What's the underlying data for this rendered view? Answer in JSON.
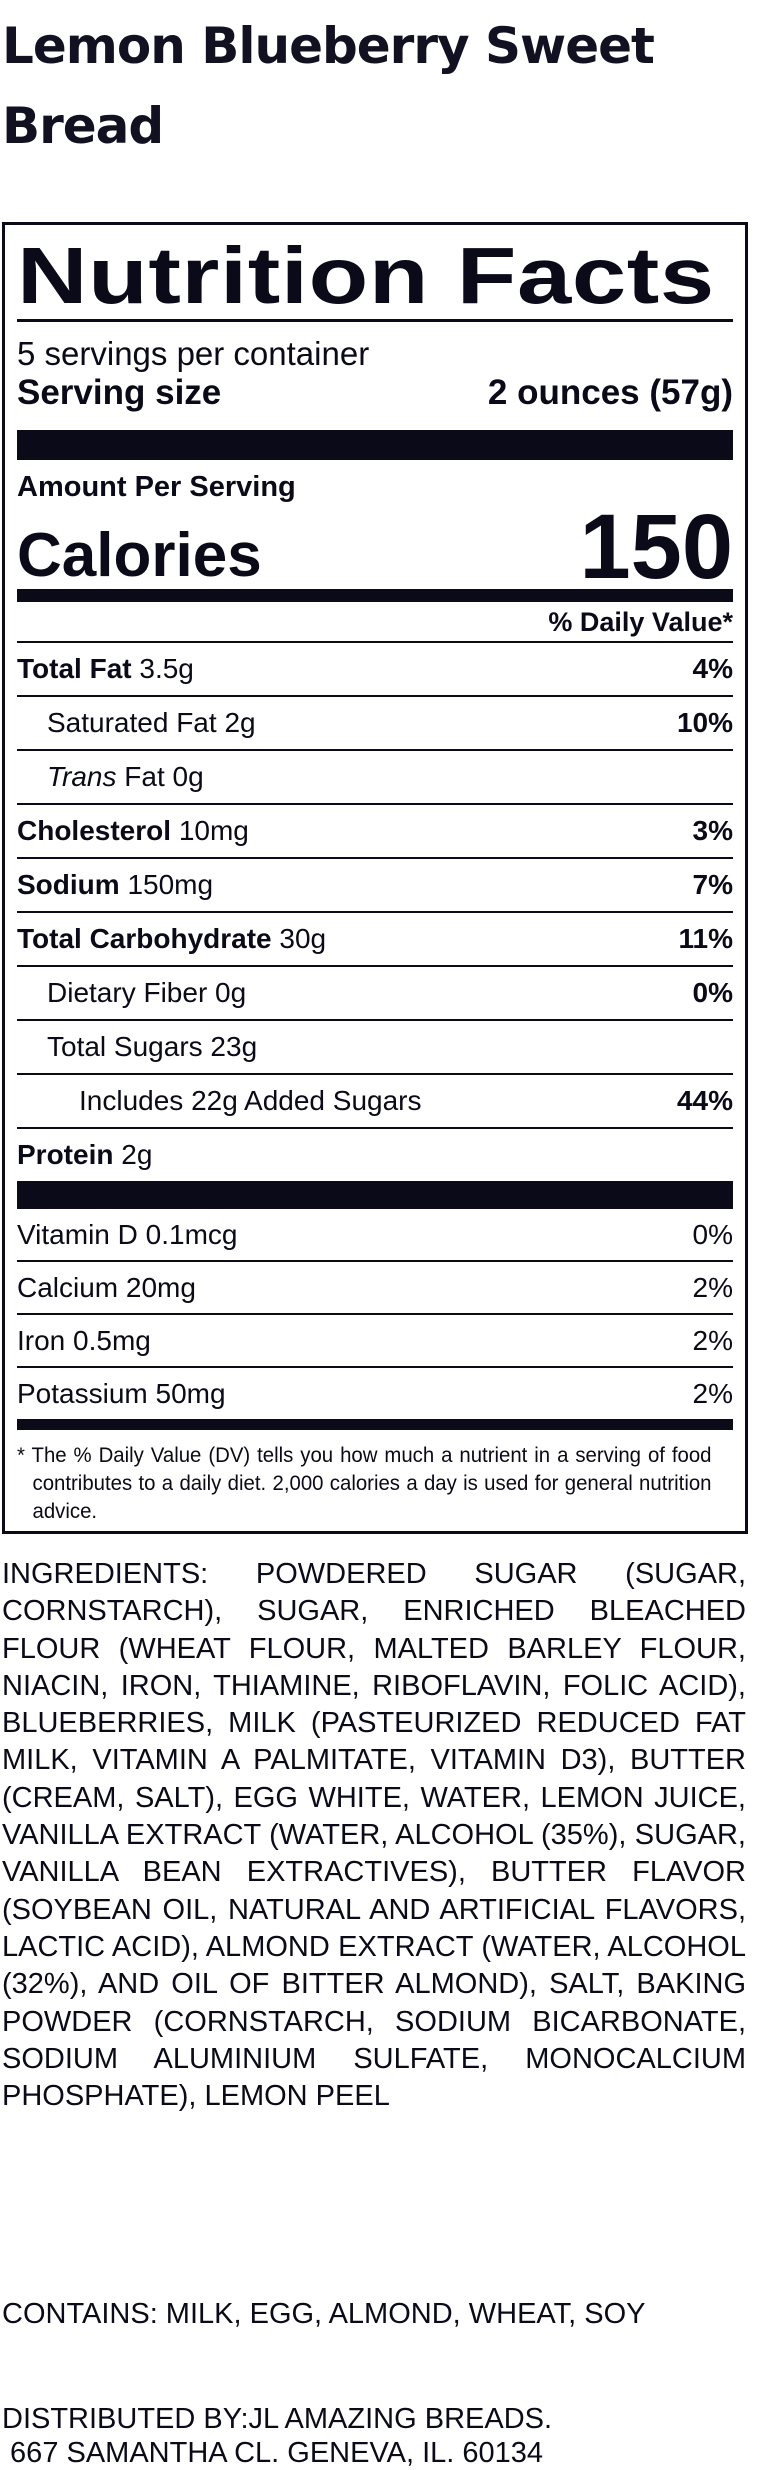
{
  "product_title": "Lemon Blueberry Sweet Bread",
  "label": {
    "heading": "Nutrition Facts",
    "servings_per_container": "5 servings per container",
    "serving_size_label": "Serving size",
    "serving_size_value": "2 ounces (57g)",
    "amount_per_serving": "Amount Per Serving",
    "calories_label": "Calories",
    "calories_value": "150",
    "daily_value_header": "% Daily Value*",
    "nutrients": [
      {
        "name": "Total Fat",
        "amount": "3.5g",
        "dv": "4%"
      },
      {
        "name": "Saturated Fat",
        "amount": "2g",
        "dv": "10%"
      },
      {
        "name": "Trans",
        "amount": "Fat 0g",
        "dv": ""
      },
      {
        "name": "Cholesterol",
        "amount": "10mg",
        "dv": "3%"
      },
      {
        "name": "Sodium",
        "amount": "150mg",
        "dv": "7%"
      },
      {
        "name": "Total Carbohydrate",
        "amount": "30g",
        "dv": "11%"
      },
      {
        "name": "Dietary Fiber",
        "amount": "0g",
        "dv": "0%"
      },
      {
        "name": "Total Sugars",
        "amount": "23g",
        "dv": ""
      },
      {
        "name": "Includes 22g Added Sugars",
        "amount": "",
        "dv": "44%"
      },
      {
        "name": "Protein",
        "amount": "2g",
        "dv": ""
      }
    ],
    "vitamins": [
      {
        "name": "Vitamin D 0.1mcg",
        "dv": "0%"
      },
      {
        "name": "Calcium 20mg",
        "dv": "2%"
      },
      {
        "name": "Iron 0.5mg",
        "dv": "2%"
      },
      {
        "name": "Potassium 50mg",
        "dv": "2%"
      }
    ],
    "footnote": "* The % Daily Value (DV) tells you how much a nutrient in a serving of food contributes to a daily diet. 2,000 calories a day is used for general nutrition advice."
  },
  "ingredients": "INGREDIENTS: POWDERED SUGAR (SUGAR, CORNSTARCH), SUGAR, ENRICHED BLEACHED FLOUR (WHEAT FLOUR, MALTED BARLEY FLOUR, NIACIN, IRON, THIAMINE, RIBOFLAVIN, FOLIC ACID), BLUEBERRIES, MILK (PASTEURIZED REDUCED FAT MILK, VITAMIN A PALMITATE, VITAMIN D3), BUTTER (CREAM, SALT), EGG WHITE, WATER, LEMON JUICE, VANILLA EXTRACT (WATER, ALCOHOL (35%), SUGAR, VANILLA BEAN EXTRACTIVES), BUTTER FLAVOR (SOYBEAN OIL, NATURAL AND ARTIFICIAL FLAVORS, LACTIC ACID), ALMOND EXTRACT (WATER, ALCOHOL (32%), AND OIL OF BITTER ALMOND), SALT, BAKING POWDER (CORNSTARCH, SODIUM BICARBONATE, SODIUM ALUMINIUM SULFATE, MONOCALCIUM PHOSPHATE), LEMON PEEL",
  "contains": "CONTAINS: MILK, EGG, ALMOND, WHEAT, SOY",
  "distributor": {
    "line1": "DISTRIBUTED BY:JL AMAZING BREADS.",
    "line2": " 667 SAMANTHA CL. GENEVA, IL. 60134"
  },
  "colors": {
    "ink": "#0a0a18",
    "background": "#ffffff"
  }
}
